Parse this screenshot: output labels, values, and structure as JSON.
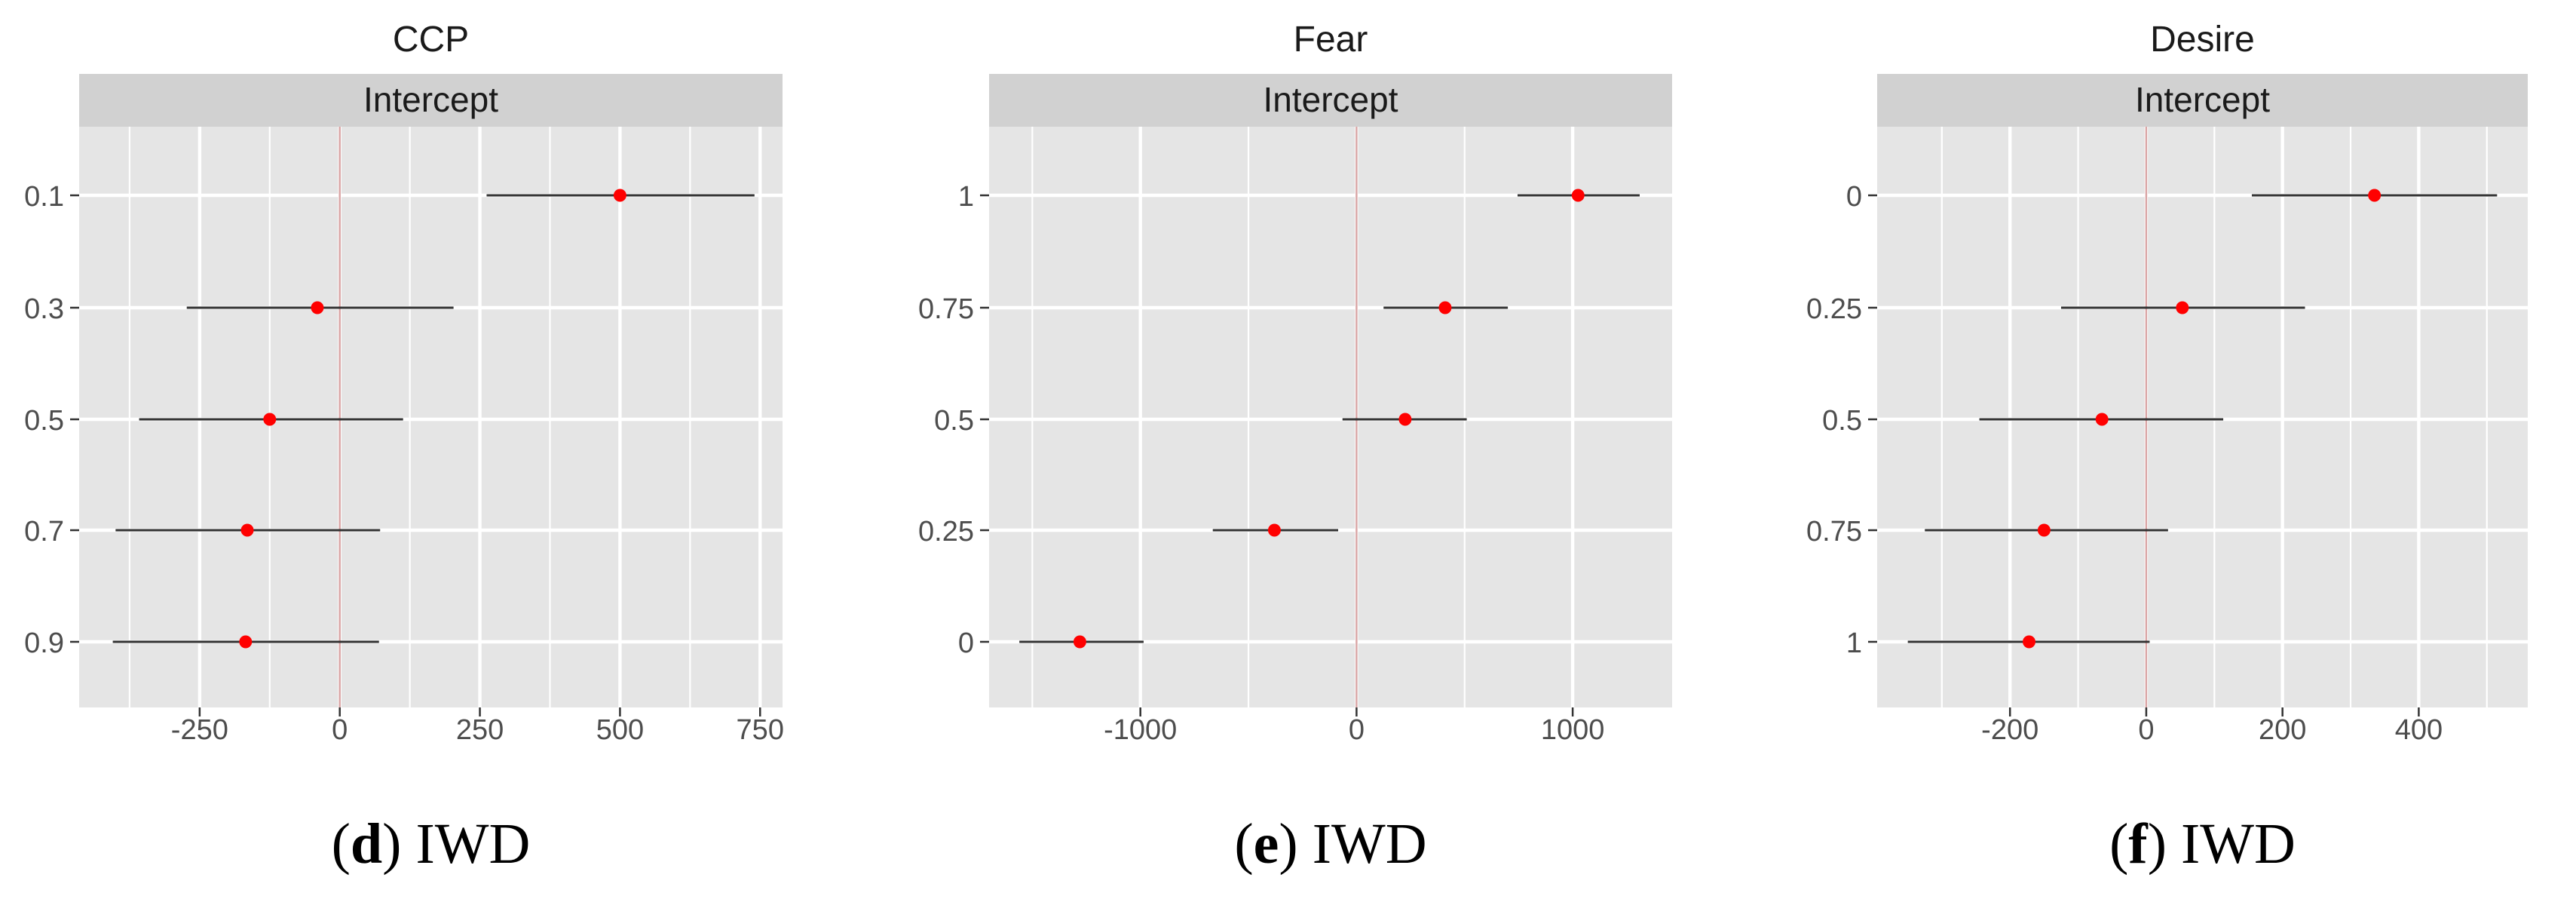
{
  "chart_data": [
    {
      "type": "forest",
      "title": "CCP",
      "facet_label": "Intercept",
      "caption": {
        "letter": "d",
        "text": "IWD"
      },
      "categories": [
        "0.1",
        "0.3",
        "0.5",
        "0.7",
        "0.9"
      ],
      "estimates": [
        500,
        -40,
        -125,
        -165,
        -168
      ],
      "ci_low": [
        262,
        -273,
        -358,
        -400,
        -405
      ],
      "ci_high": [
        740,
        203,
        113,
        72,
        70
      ],
      "xlim": [
        -465,
        790
      ],
      "xticks": [
        -250,
        0,
        250,
        500,
        750
      ],
      "xtick_labels": [
        "-250",
        "0",
        "250",
        "500",
        "750"
      ],
      "reference_line": 0,
      "grid": true
    },
    {
      "type": "forest",
      "title": "Fear",
      "facet_label": "Intercept",
      "caption": {
        "letter": "e",
        "text": "IWD"
      },
      "categories": [
        "1",
        "0.75",
        "0.5",
        "0.25",
        "0"
      ],
      "estimates": [
        1025,
        410,
        225,
        -380,
        -1280
      ],
      "ci_low": [
        745,
        125,
        -65,
        -665,
        -1560
      ],
      "ci_high": [
        1310,
        700,
        510,
        -85,
        -985
      ],
      "xlim": [
        -1700,
        1460
      ],
      "xticks": [
        -1000,
        0,
        1000
      ],
      "xtick_labels": [
        "-1000",
        "0",
        "1000"
      ],
      "reference_line": 0,
      "grid": true
    },
    {
      "type": "forest",
      "title": "Desire",
      "facet_label": "Intercept",
      "caption": {
        "letter": "f",
        "text": "IWD"
      },
      "categories": [
        "0",
        "0.25",
        "0.5",
        "0.75",
        "1"
      ],
      "estimates": [
        335,
        53,
        -65,
        -150,
        -172
      ],
      "ci_low": [
        155,
        -125,
        -245,
        -325,
        -350
      ],
      "ci_high": [
        515,
        233,
        113,
        32,
        5
      ],
      "xlim": [
        -395,
        560
      ],
      "xticks": [
        -200,
        0,
        200,
        400
      ],
      "xtick_labels": [
        "-200",
        "0",
        "200",
        "400"
      ],
      "reference_line": 0,
      "grid": true
    }
  ],
  "colors": {
    "panel_bg": "#e5e5e5",
    "strip_bg": "#d1d1d1",
    "grid": "#ffffff",
    "point": "#ff0000",
    "ci_line": "#333333",
    "reference_line": "#d9a3a3",
    "tick_text": "#4d4d4d"
  }
}
